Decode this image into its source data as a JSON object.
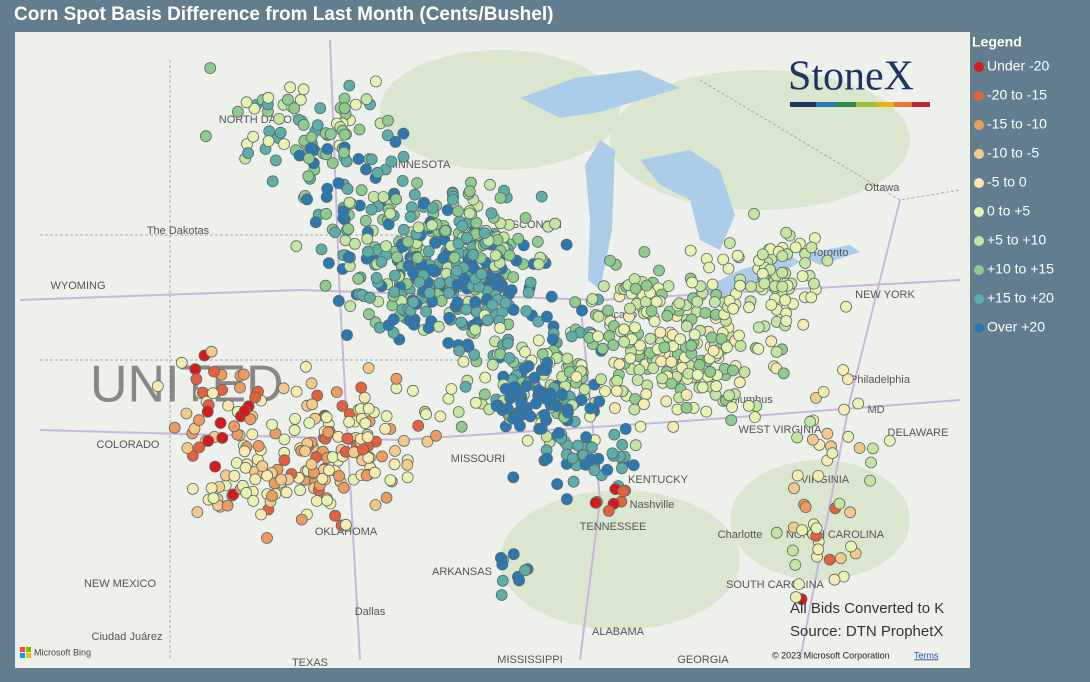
{
  "header": {
    "title": "Corn Spot Basis Difference from Last Month (Cents/Bushel)"
  },
  "legend": {
    "title": "Legend",
    "items": [
      {
        "label": "Under -20",
        "color": "#d7191c"
      },
      {
        "label": "-20 to -15",
        "color": "#e5603d"
      },
      {
        "label": "-15 to -10",
        "color": "#ef9a5e"
      },
      {
        "label": "-10 to -5",
        "color": "#f5c98b"
      },
      {
        "label": "-5 to 0",
        "color": "#f7ebaf"
      },
      {
        "label": "0 to +5",
        "color": "#e8f3b2"
      },
      {
        "label": "+5 to +10",
        "color": "#c5e5a0"
      },
      {
        "label": "+10 to +15",
        "color": "#8ecb8d"
      },
      {
        "label": "+15 to +20",
        "color": "#5eada9"
      },
      {
        "label": "Over +20",
        "color": "#2b78b3"
      }
    ]
  },
  "logo": "StoneX",
  "map_labels": [
    "UNITED",
    "NORTH DAKOTA",
    "MINNESOTA",
    "The Dakotas",
    "WYOMING",
    "COLORADO",
    "MISSOURI",
    "KENTUCKY",
    "Nashville",
    "TENNESSEE",
    "OKLAHOMA",
    "ARKANSAS",
    "NEW MEXICO",
    "Dallas",
    "Ciudad Juárez",
    "TEXAS",
    "MISSISSIPPI",
    "ALABAMA",
    "GEORGIA",
    "SOUTH CAROLINA",
    "NORTH CAROLINA",
    "Charlotte",
    "VIRGINIA",
    "WEST VIRGINIA",
    "Columbus",
    "DELAWARE",
    "MD",
    "Philadelphia",
    "NEW YORK",
    "Toronto",
    "Ottawa",
    "Chicago",
    "WISCONSIN"
  ],
  "notes": [
    "All Bids Converted to K",
    "Source: DTN ProphetX"
  ],
  "attribution": {
    "bing": "Microsoft Bing",
    "copyright": "© 2023 Microsoft Corporation",
    "terms": "Terms"
  }
}
